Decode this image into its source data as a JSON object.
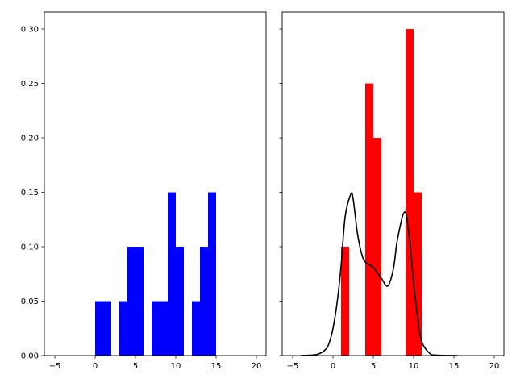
{
  "chart_data": [
    {
      "type": "bar",
      "subtype": "histogram",
      "bin_edges": [
        0,
        1,
        2,
        3,
        4,
        5,
        6,
        7,
        8,
        9,
        10,
        11,
        12,
        13,
        14,
        15
      ],
      "values": [
        0.05,
        0.05,
        0,
        0.05,
        0.1,
        0.1,
        0,
        0.05,
        0.05,
        0.15,
        0.1,
        0,
        0.05,
        0.1,
        0.15
      ],
      "color": "#0000ff",
      "xlim": [
        -6.3,
        21.2
      ],
      "ylim": [
        0,
        0.3156
      ],
      "xticks": [
        -5,
        0,
        5,
        10,
        15,
        20
      ],
      "xtick_labels": [
        "−5",
        "0",
        "5",
        "10",
        "15",
        "20"
      ],
      "yticks": [
        0,
        0.05,
        0.1,
        0.15,
        0.2,
        0.25,
        0.3
      ],
      "ytick_labels": [
        "0.00",
        "0.05",
        "0.10",
        "0.15",
        "0.20",
        "0.25",
        "0.30"
      ],
      "grid": false
    },
    {
      "type": "bar",
      "subtype": "histogram with density line",
      "bin_edges": [
        1,
        2,
        3,
        4,
        5,
        6,
        7,
        8,
        9,
        10,
        11
      ],
      "values": [
        0.1,
        0,
        0,
        0.25,
        0.2,
        0,
        0,
        0,
        0.3,
        0.15
      ],
      "color": "#ff0000",
      "line": {
        "color": "#000000",
        "x": [
          -4,
          -2,
          -1,
          -0.5,
          0,
          0.5,
          1,
          1.5,
          2.2,
          2.5,
          3,
          3.5,
          4,
          5,
          6,
          6.8,
          7.5,
          8,
          8.9,
          9.5,
          10,
          10.5,
          11,
          12,
          13,
          15.5
        ],
        "y": [
          0,
          0.001,
          0.005,
          0.011,
          0.025,
          0.048,
          0.082,
          0.127,
          0.148,
          0.144,
          0.114,
          0.095,
          0.086,
          0.081,
          0.071,
          0.064,
          0.08,
          0.107,
          0.132,
          0.107,
          0.067,
          0.035,
          0.013,
          0.002,
          0.0003,
          0
        ]
      },
      "xlim": [
        -6.3,
        21.2
      ],
      "ylim": [
        0,
        0.3156
      ],
      "xticks": [
        -5,
        0,
        5,
        10,
        15,
        20
      ],
      "xtick_labels": [
        "−5",
        "0",
        "5",
        "10",
        "15",
        "20"
      ],
      "yticks": [
        0,
        0.05,
        0.1,
        0.15,
        0.2,
        0.25,
        0.3
      ],
      "shared_y": true,
      "grid": false
    }
  ]
}
